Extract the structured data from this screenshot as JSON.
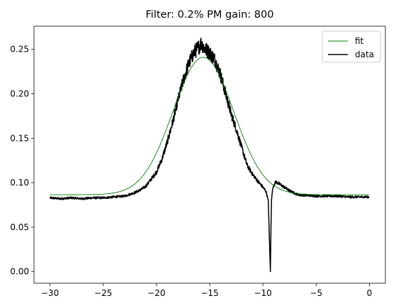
{
  "chart_data": {
    "type": "line",
    "title": "Filter: 0.2% PM gain: 800",
    "xlabel": "",
    "ylabel": "",
    "xlim": [
      -31.5,
      1.5
    ],
    "ylim": [
      -0.013,
      0.276
    ],
    "xticks": [
      -30,
      -25,
      -20,
      -15,
      -10,
      -5,
      0
    ],
    "xtick_labels": [
      "−30",
      "−25",
      "−20",
      "−15",
      "−10",
      "−5",
      "0"
    ],
    "yticks": [
      0.0,
      0.05,
      0.1,
      0.15,
      0.2,
      0.25
    ],
    "ytick_labels": [
      "0.00",
      "0.05",
      "0.10",
      "0.15",
      "0.20",
      "0.25"
    ],
    "grid": false,
    "legend_position": "upper-right",
    "series": [
      {
        "name": "fit",
        "color": "#008000",
        "model": "gaussian",
        "params": {
          "baseline": 0.0865,
          "amplitude": 0.1545,
          "center": -15.6,
          "sigma": 2.85
        }
      },
      {
        "name": "data",
        "color": "#000000",
        "x": [
          -30,
          -29,
          -28,
          -27,
          -26,
          -25,
          -24,
          -23,
          -22,
          -21.5,
          -21,
          -20.5,
          -20,
          -19.5,
          -19,
          -18.5,
          -18,
          -17.5,
          -17,
          -16.5,
          -16,
          -15.8,
          -15.5,
          -15,
          -14.5,
          -14,
          -13.5,
          -13,
          -12.5,
          -12,
          -11.5,
          -11,
          -10.5,
          -10,
          -9.7,
          -9.5,
          -9.4,
          -9.3,
          -9.25,
          -9.2,
          -9.1,
          -9.0,
          -8.8,
          -8.5,
          -8,
          -7.5,
          -7,
          -6.5,
          -6,
          -5,
          -4,
          -3,
          -2,
          -1,
          0
        ],
        "y": [
          0.083,
          0.082,
          0.083,
          0.082,
          0.083,
          0.083,
          0.084,
          0.085,
          0.089,
          0.092,
          0.096,
          0.104,
          0.112,
          0.126,
          0.145,
          0.167,
          0.192,
          0.214,
          0.233,
          0.246,
          0.253,
          0.257,
          0.251,
          0.246,
          0.238,
          0.222,
          0.2,
          0.178,
          0.16,
          0.14,
          0.12,
          0.11,
          0.102,
          0.095,
          0.09,
          0.08,
          0.04,
          0.0,
          0.045,
          0.08,
          0.092,
          0.097,
          0.101,
          0.099,
          0.095,
          0.091,
          0.088,
          0.086,
          0.086,
          0.085,
          0.085,
          0.085,
          0.084,
          0.084,
          0.084
        ]
      }
    ]
  }
}
